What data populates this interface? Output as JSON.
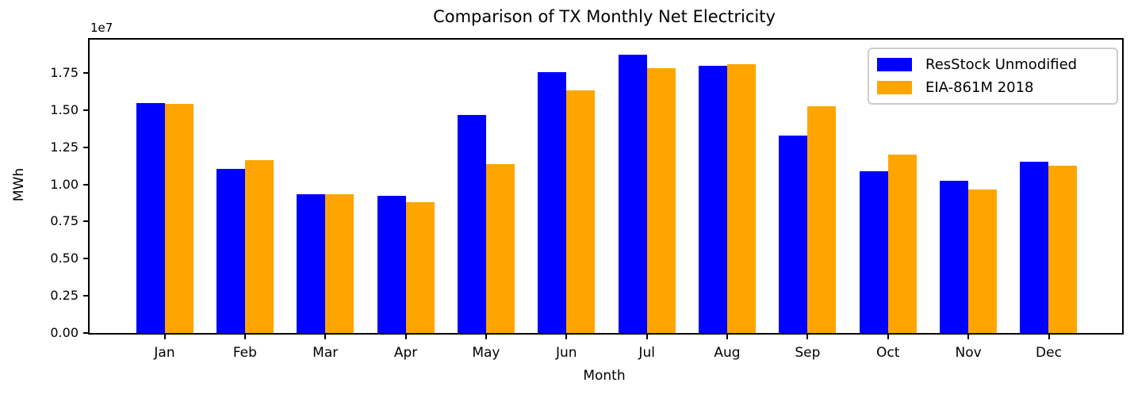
{
  "figure": {
    "title": "Comparison of TX Monthly Net Electricity",
    "y_offset_multiplier": "1e7",
    "ylabel": "MWh",
    "xlabel": "Month"
  },
  "legend": {
    "position": "upper right",
    "entries": [
      {
        "label": "ResStock Unmodified",
        "color": "#0000ff"
      },
      {
        "label": "EIA-861M 2018",
        "color": "#ffa500"
      }
    ]
  },
  "chart_data": {
    "type": "bar",
    "title": "Comparison of TX Monthly Net Electricity",
    "xlabel": "Month",
    "ylabel": "MWh",
    "y_offset_multiplier": "1e7",
    "grid": false,
    "legend_position": "upper right",
    "categories": [
      "Jan",
      "Feb",
      "Mar",
      "Apr",
      "May",
      "Jun",
      "Jul",
      "Aug",
      "Sep",
      "Oct",
      "Nov",
      "Dec"
    ],
    "series": [
      {
        "name": "ResStock Unmodified",
        "color": "#0000ff",
        "values": [
          15450000,
          11020000,
          9330000,
          9220000,
          14670000,
          17550000,
          18720000,
          17990000,
          13280000,
          10890000,
          10230000,
          11530000
        ]
      },
      {
        "name": "EIA-861M 2018",
        "color": "#ffa500",
        "values": [
          15400000,
          11640000,
          9350000,
          8830000,
          11340000,
          16340000,
          17840000,
          18080000,
          15270000,
          12030000,
          9650000,
          11250000
        ]
      }
    ],
    "ylim": [
      0,
      19740000
    ],
    "yticks": [
      0,
      2500000,
      5000000,
      7500000,
      10000000,
      12500000,
      15000000,
      17500000
    ],
    "ytick_labels": [
      "0.00",
      "0.25",
      "0.50",
      "0.75",
      "1.00",
      "1.25",
      "1.50",
      "1.75"
    ]
  }
}
